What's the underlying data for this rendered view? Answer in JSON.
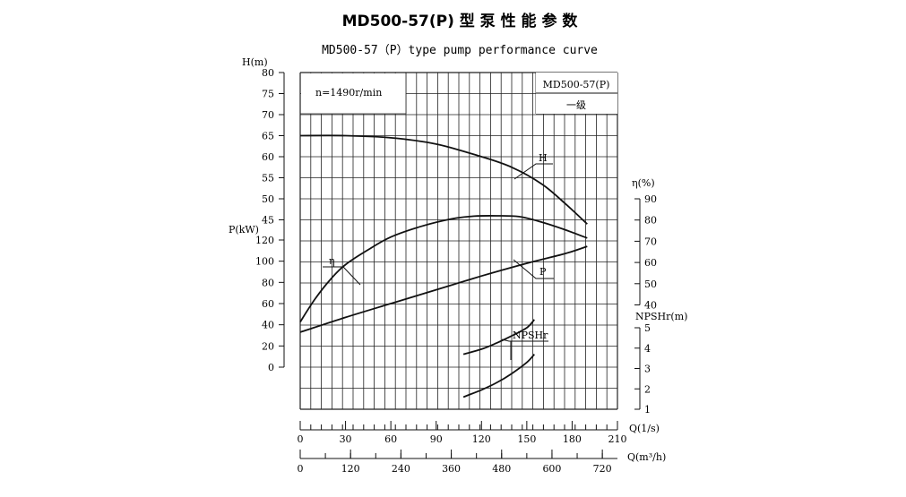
{
  "chart_data": {
    "type": "line",
    "title": "MD500-57(P) 型 泵 性 能 参 数",
    "subtitle": "MD500-57（P）type pump performance curve",
    "speed_note": "n=1490r/min",
    "model_box": {
      "model": "MD500-57(P)",
      "stage": "一级"
    },
    "axes": {
      "H": {
        "label": "H(m)",
        "ticks": [
          "80",
          "75",
          "70",
          "65",
          "60",
          "55",
          "50",
          "45"
        ],
        "range": [
          45,
          80
        ]
      },
      "P": {
        "label": "P(kW)",
        "ticks": [
          "120",
          "100",
          "80",
          "60",
          "40",
          "20",
          "0"
        ],
        "range": [
          0,
          120
        ]
      },
      "eta": {
        "label": "η(%)",
        "ticks": [
          "90",
          "80",
          "70",
          "60",
          "50",
          "40"
        ],
        "range": [
          40,
          90
        ]
      },
      "NPSHr": {
        "label": "NPSHr(m)",
        "ticks": [
          "5",
          "4",
          "3",
          "2",
          "1"
        ],
        "range": [
          1,
          5
        ]
      },
      "Q_ls": {
        "label": "Q(1/s)",
        "ticks": [
          "0",
          "30",
          "60",
          "90",
          "120",
          "150",
          "180",
          "210"
        ],
        "range": [
          0,
          210
        ]
      },
      "Q_m3h": {
        "label": "Q(m³/h)",
        "ticks": [
          "0",
          "120",
          "240",
          "360",
          "480",
          "600",
          "720"
        ],
        "range": [
          0,
          756
        ]
      }
    },
    "series": [
      {
        "name": "H",
        "unit": "m",
        "points": [
          [
            0,
            65
          ],
          [
            30,
            65
          ],
          [
            60,
            64.5
          ],
          [
            90,
            63
          ],
          [
            120,
            60
          ],
          [
            140,
            57.5
          ],
          [
            160,
            53.5
          ],
          [
            175,
            49
          ],
          [
            190,
            44
          ]
        ]
      },
      {
        "name": "η",
        "unit": "%",
        "points": [
          [
            0,
            32
          ],
          [
            10,
            43
          ],
          [
            20,
            52
          ],
          [
            30,
            59
          ],
          [
            45,
            66
          ],
          [
            60,
            72
          ],
          [
            80,
            77
          ],
          [
            100,
            80.5
          ],
          [
            115,
            81.8
          ],
          [
            130,
            82
          ],
          [
            145,
            81.6
          ],
          [
            160,
            79
          ],
          [
            175,
            75.5
          ],
          [
            190,
            71.5
          ]
        ]
      },
      {
        "name": "P",
        "unit": "kW",
        "points": [
          [
            0,
            33
          ],
          [
            30,
            47
          ],
          [
            60,
            60
          ],
          [
            90,
            73
          ],
          [
            120,
            86
          ],
          [
            150,
            98
          ],
          [
            175,
            107
          ],
          [
            190,
            114
          ]
        ]
      },
      {
        "name": "NPSHr",
        "unit": "m",
        "points_upper": [
          [
            108,
            3.7
          ],
          [
            120,
            3.95
          ],
          [
            130,
            4.25
          ],
          [
            140,
            4.6
          ],
          [
            150,
            5.0
          ],
          [
            155,
            5.4
          ]
        ],
        "points_lower": [
          [
            108,
            1.6
          ],
          [
            120,
            1.95
          ],
          [
            130,
            2.3
          ],
          [
            140,
            2.75
          ],
          [
            150,
            3.3
          ],
          [
            155,
            3.7
          ]
        ]
      }
    ],
    "grid": true
  }
}
